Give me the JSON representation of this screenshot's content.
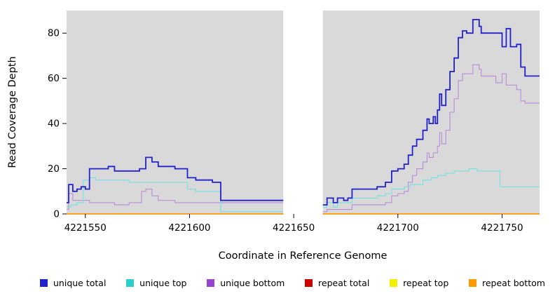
{
  "chart_data": {
    "type": "line",
    "subtype": "step",
    "title": "",
    "xlabel": "Coordinate in Reference Genome",
    "ylabel": "Read Coverage Depth",
    "xlim": [
      4221541,
      4221768
    ],
    "ylim": [
      0,
      90
    ],
    "x_ticks": [
      "4221550",
      "4221600",
      "4221650",
      "4221700",
      "4221750"
    ],
    "y_ticks": [
      "0",
      "20",
      "40",
      "60",
      "80"
    ],
    "grid": false,
    "plot_background": "#d9d9d9",
    "masked_region": {
      "x0": 4221645,
      "x1": 4221664,
      "color": "#ffffff"
    },
    "legend_position": "bottom",
    "series": [
      {
        "name": "repeat total",
        "color": "#CC0000",
        "line_color": "#CC0000",
        "width": 1.3,
        "segments": [
          [
            [
              4221541,
              0
            ],
            [
              4221645,
              0
            ]
          ],
          [
            [
              4221664,
              0
            ],
            [
              4221768,
              0
            ]
          ]
        ]
      },
      {
        "name": "repeat top",
        "color": "#F2F200",
        "line_color": "#F2F200",
        "width": 1.3,
        "segments": [
          [
            [
              4221541,
              0
            ],
            [
              4221645,
              0
            ]
          ],
          [
            [
              4221664,
              0
            ],
            [
              4221768,
              0
            ]
          ]
        ]
      },
      {
        "name": "repeat bottom",
        "color": "#FF9900",
        "line_color": "#FF9900",
        "width": 1.4,
        "segments": [
          [
            [
              4221541,
              0
            ],
            [
              4221645,
              0
            ]
          ],
          [
            [
              4221664,
              0
            ],
            [
              4221768,
              0
            ]
          ]
        ]
      },
      {
        "name": "unique bottom",
        "color": "#9944CC",
        "line_color": "#B98CDB",
        "width": 1.1,
        "segments": [
          [
            [
              4221541,
              2
            ],
            [
              4221542,
              9
            ],
            [
              4221544,
              6
            ],
            [
              4221552,
              5
            ],
            [
              4221564,
              4
            ],
            [
              4221571,
              5
            ],
            [
              4221577,
              10
            ],
            [
              4221579,
              11
            ],
            [
              4221582,
              8
            ],
            [
              4221585,
              6
            ],
            [
              4221593,
              5
            ],
            [
              4221645,
              5
            ]
          ],
          [
            [
              4221664,
              1
            ],
            [
              4221666,
              2
            ],
            [
              4221678,
              4
            ],
            [
              4221694,
              5
            ],
            [
              4221697,
              8
            ],
            [
              4221700,
              9
            ],
            [
              4221703,
              10
            ],
            [
              4221705,
              14
            ],
            [
              4221707,
              17
            ],
            [
              4221709,
              20
            ],
            [
              4221712,
              23
            ],
            [
              4221714,
              27
            ],
            [
              4221715,
              25
            ],
            [
              4221717,
              27
            ],
            [
              4221719,
              30
            ],
            [
              4221720,
              36
            ],
            [
              4221721,
              31
            ],
            [
              4221723,
              37
            ],
            [
              4221725,
              45
            ],
            [
              4221727,
              51
            ],
            [
              4221729,
              59
            ],
            [
              4221731,
              62
            ],
            [
              4221736,
              66
            ],
            [
              4221739,
              64
            ],
            [
              4221740,
              61
            ],
            [
              4221744,
              61
            ],
            [
              4221747,
              58
            ],
            [
              4221750,
              62
            ],
            [
              4221752,
              57
            ],
            [
              4221757,
              55
            ],
            [
              4221759,
              50
            ],
            [
              4221761,
              49
            ],
            [
              4221768,
              49
            ]
          ]
        ]
      },
      {
        "name": "unique top",
        "color": "#2FCDCD",
        "line_color": "#72E2E2",
        "width": 1.1,
        "segments": [
          [
            [
              4221541,
              3
            ],
            [
              4221543,
              4
            ],
            [
              4221546,
              5
            ],
            [
              4221549,
              15
            ],
            [
              4221552,
              16
            ],
            [
              4221555,
              15
            ],
            [
              4221571,
              14
            ],
            [
              4221599,
              11
            ],
            [
              4221603,
              10
            ],
            [
              4221615,
              1
            ],
            [
              4221645,
              1
            ]
          ],
          [
            [
              4221664,
              3
            ],
            [
              4221666,
              5
            ],
            [
              4221669,
              3
            ],
            [
              4221671,
              5
            ],
            [
              4221678,
              7
            ],
            [
              4221690,
              8
            ],
            [
              4221694,
              9
            ],
            [
              4221697,
              11
            ],
            [
              4221703,
              12
            ],
            [
              4221706,
              13
            ],
            [
              4221712,
              15
            ],
            [
              4221716,
              16
            ],
            [
              4221719,
              17
            ],
            [
              4221723,
              18
            ],
            [
              4221727,
              19
            ],
            [
              4221734,
              20
            ],
            [
              4221738,
              19
            ],
            [
              4221749,
              12
            ],
            [
              4221768,
              12
            ]
          ]
        ]
      },
      {
        "name": "unique total",
        "color": "#2222CC",
        "line_color": "#2222CC",
        "width": 1.8,
        "segments": [
          [
            [
              4221541,
              5
            ],
            [
              4221542,
              13
            ],
            [
              4221544,
              10
            ],
            [
              4221546,
              11
            ],
            [
              4221548,
              12
            ],
            [
              4221550,
              11
            ],
            [
              4221552,
              20
            ],
            [
              4221561,
              21
            ],
            [
              4221564,
              19
            ],
            [
              4221576,
              20
            ],
            [
              4221579,
              25
            ],
            [
              4221582,
              23
            ],
            [
              4221585,
              21
            ],
            [
              4221593,
              20
            ],
            [
              4221599,
              16
            ],
            [
              4221603,
              15
            ],
            [
              4221611,
              14
            ],
            [
              4221615,
              6
            ],
            [
              4221645,
              6
            ]
          ],
          [
            [
              4221664,
              4
            ],
            [
              4221666,
              7
            ],
            [
              4221669,
              5
            ],
            [
              4221671,
              7
            ],
            [
              4221674,
              6
            ],
            [
              4221676,
              7
            ],
            [
              4221678,
              11
            ],
            [
              4221690,
              12
            ],
            [
              4221694,
              14
            ],
            [
              4221697,
              19
            ],
            [
              4221700,
              20
            ],
            [
              4221703,
              22
            ],
            [
              4221705,
              26
            ],
            [
              4221707,
              30
            ],
            [
              4221709,
              33
            ],
            [
              4221712,
              37
            ],
            [
              4221714,
              42
            ],
            [
              4221715,
              40
            ],
            [
              4221717,
              43
            ],
            [
              4221718,
              40
            ],
            [
              4221719,
              46
            ],
            [
              4221720,
              53
            ],
            [
              4221721,
              48
            ],
            [
              4221723,
              55
            ],
            [
              4221725,
              63
            ],
            [
              4221727,
              69
            ],
            [
              4221729,
              78
            ],
            [
              4221731,
              81
            ],
            [
              4221733,
              80
            ],
            [
              4221736,
              86
            ],
            [
              4221739,
              83
            ],
            [
              4221740,
              80
            ],
            [
              4221750,
              74
            ],
            [
              4221752,
              82
            ],
            [
              4221754,
              74
            ],
            [
              4221757,
              75
            ],
            [
              4221759,
              65
            ],
            [
              4221761,
              61
            ],
            [
              4221768,
              61
            ]
          ]
        ]
      }
    ],
    "legend": [
      {
        "label": "unique total",
        "color": "#2222CC"
      },
      {
        "label": "unique top",
        "color": "#2FCDCD"
      },
      {
        "label": "unique bottom",
        "color": "#9944CC"
      },
      {
        "label": "repeat total",
        "color": "#CC0000"
      },
      {
        "label": "repeat top",
        "color": "#F2F200"
      },
      {
        "label": "repeat bottom",
        "color": "#FF9900"
      }
    ]
  }
}
